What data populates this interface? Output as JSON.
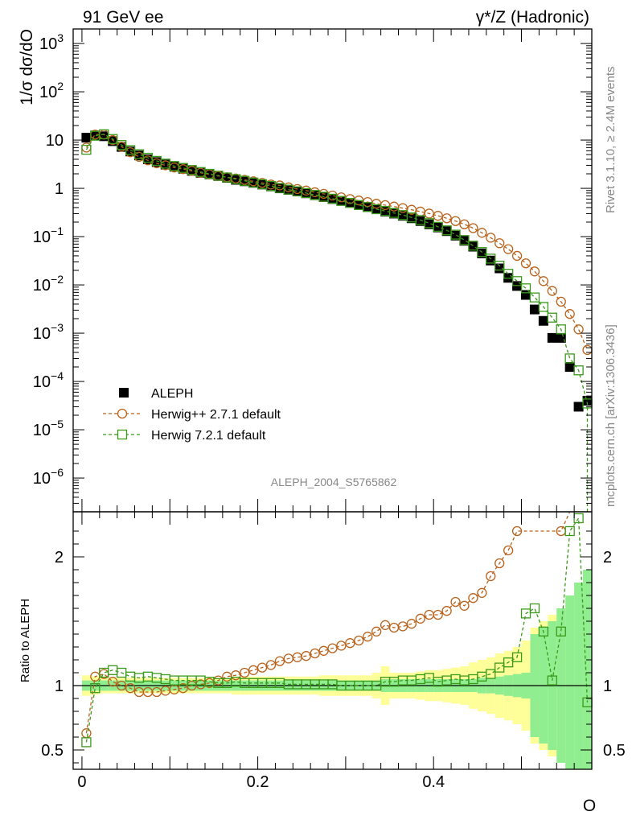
{
  "header": {
    "left_label": "91 GeV ee",
    "right_label": "γ*/Z (Hadronic)"
  },
  "side_labels": {
    "rivet": "Rivet 3.1.10, ≥ 2.4M events",
    "mcplots": "mcplots.cern.ch [arXiv:1306.3436]"
  },
  "analysis_id": "ALEPH_2004_S5765862",
  "chart_data": [
    {
      "type": "scatter",
      "panel": "main",
      "ylabel": "1/σ  dσ/dO",
      "xlabel": "",
      "xlim": [
        -0.01,
        0.58
      ],
      "ylim": [
        2e-07,
        2000
      ],
      "yscale": "log",
      "yticks": [
        {
          "value": 1e-06,
          "label": "10^-6"
        },
        {
          "value": 1e-05,
          "label": "10^-5"
        },
        {
          "value": 0.0001,
          "label": "10^-4"
        },
        {
          "value": 0.001,
          "label": "10^-3"
        },
        {
          "value": 0.01,
          "label": "10^-2"
        },
        {
          "value": 0.1,
          "label": "10^-1"
        },
        {
          "value": 1,
          "label": "1"
        },
        {
          "value": 10,
          "label": "10"
        },
        {
          "value": 100,
          "label": "10^2"
        },
        {
          "value": 1000,
          "label": "10^3"
        }
      ],
      "legend_position": "bottom-left",
      "series": [
        {
          "name": "ALEPH",
          "marker": "filled-square",
          "color": "#000000",
          "x": [
            0.005,
            0.015,
            0.025,
            0.035,
            0.045,
            0.055,
            0.065,
            0.075,
            0.085,
            0.095,
            0.105,
            0.115,
            0.125,
            0.135,
            0.145,
            0.155,
            0.165,
            0.175,
            0.185,
            0.195,
            0.205,
            0.215,
            0.225,
            0.235,
            0.245,
            0.255,
            0.265,
            0.275,
            0.285,
            0.295,
            0.305,
            0.315,
            0.325,
            0.335,
            0.345,
            0.355,
            0.365,
            0.375,
            0.385,
            0.395,
            0.405,
            0.415,
            0.425,
            0.435,
            0.445,
            0.455,
            0.465,
            0.475,
            0.485,
            0.495,
            0.505,
            0.515,
            0.525,
            0.535,
            0.545,
            0.555,
            0.565,
            0.575
          ],
          "y": [
            11.2,
            12.5,
            12.0,
            9.5,
            7.2,
            5.8,
            4.8,
            4.0,
            3.5,
            3.1,
            2.8,
            2.55,
            2.3,
            2.1,
            1.95,
            1.8,
            1.65,
            1.5,
            1.4,
            1.3,
            1.2,
            1.1,
            1.0,
            0.93,
            0.86,
            0.79,
            0.72,
            0.66,
            0.6,
            0.55,
            0.5,
            0.45,
            0.41,
            0.37,
            0.33,
            0.3,
            0.27,
            0.24,
            0.21,
            0.18,
            0.155,
            0.13,
            0.105,
            0.082,
            0.062,
            0.045,
            0.032,
            0.022,
            0.014,
            0.0095,
            0.0062,
            0.0031,
            0.0018,
            0.0008,
            0.0008,
            0.0002,
            3e-05,
            4e-05
          ]
        },
        {
          "name": "Herwig++ 2.7.1 default",
          "marker": "open-circle",
          "color": "#b8621b",
          "x": [
            0.005,
            0.015,
            0.025,
            0.035,
            0.045,
            0.055,
            0.065,
            0.075,
            0.085,
            0.095,
            0.105,
            0.115,
            0.125,
            0.135,
            0.145,
            0.155,
            0.165,
            0.175,
            0.185,
            0.195,
            0.205,
            0.215,
            0.225,
            0.235,
            0.245,
            0.255,
            0.265,
            0.275,
            0.285,
            0.295,
            0.305,
            0.315,
            0.325,
            0.335,
            0.345,
            0.355,
            0.365,
            0.375,
            0.385,
            0.395,
            0.405,
            0.415,
            0.425,
            0.435,
            0.445,
            0.455,
            0.465,
            0.475,
            0.485,
            0.495,
            0.505,
            0.515,
            0.525,
            0.535,
            0.545,
            0.555,
            0.565,
            0.575
          ],
          "y": [
            7.0,
            13.0,
            13.0,
            10.0,
            7.3,
            5.6,
            4.5,
            3.8,
            3.3,
            3.0,
            2.7,
            2.5,
            2.3,
            2.1,
            1.95,
            1.8,
            1.7,
            1.6,
            1.5,
            1.4,
            1.3,
            1.2,
            1.15,
            1.05,
            0.97,
            0.9,
            0.83,
            0.77,
            0.71,
            0.65,
            0.6,
            0.56,
            0.52,
            0.48,
            0.45,
            0.42,
            0.39,
            0.36,
            0.33,
            0.3,
            0.27,
            0.24,
            0.21,
            0.18,
            0.15,
            0.12,
            0.095,
            0.073,
            0.055,
            0.04,
            0.028,
            0.019,
            0.012,
            0.0075,
            0.0045,
            0.0025,
            0.0012,
            0.00045
          ]
        },
        {
          "name": "Herwig 7.2.1 default",
          "marker": "open-square",
          "color": "#3a9a1a",
          "x": [
            0.005,
            0.015,
            0.025,
            0.035,
            0.045,
            0.055,
            0.065,
            0.075,
            0.085,
            0.095,
            0.105,
            0.115,
            0.125,
            0.135,
            0.145,
            0.155,
            0.165,
            0.175,
            0.185,
            0.195,
            0.205,
            0.215,
            0.225,
            0.235,
            0.245,
            0.255,
            0.265,
            0.275,
            0.285,
            0.295,
            0.305,
            0.315,
            0.325,
            0.335,
            0.345,
            0.355,
            0.365,
            0.375,
            0.385,
            0.395,
            0.405,
            0.415,
            0.425,
            0.435,
            0.445,
            0.455,
            0.465,
            0.475,
            0.485,
            0.495,
            0.505,
            0.515,
            0.525,
            0.535,
            0.545,
            0.555,
            0.565,
            0.575
          ],
          "y": [
            6.3,
            12.3,
            13.2,
            10.5,
            7.9,
            6.2,
            5.1,
            4.3,
            3.7,
            3.25,
            2.9,
            2.65,
            2.4,
            2.18,
            2.0,
            1.83,
            1.68,
            1.55,
            1.43,
            1.32,
            1.22,
            1.12,
            1.02,
            0.94,
            0.87,
            0.8,
            0.73,
            0.67,
            0.61,
            0.55,
            0.5,
            0.45,
            0.41,
            0.37,
            0.34,
            0.31,
            0.28,
            0.25,
            0.22,
            0.19,
            0.16,
            0.135,
            0.11,
            0.085,
            0.065,
            0.048,
            0.035,
            0.025,
            0.017,
            0.012,
            0.0085,
            0.0055,
            0.0035,
            0.0021,
            0.0012,
            0.0003,
            0.00017,
            3.5e-05
          ]
        }
      ]
    },
    {
      "type": "scatter",
      "panel": "ratio",
      "ylabel": "Ratio to ALEPH",
      "xlabel": "O",
      "xlim": [
        -0.01,
        0.58
      ],
      "ylim": [
        0.35,
        2.35
      ],
      "xticks": [
        {
          "value": 0,
          "label": "0"
        },
        {
          "value": 0.2,
          "label": "0.2"
        },
        {
          "value": 0.4,
          "label": "0.4"
        }
      ],
      "yticks": [
        {
          "value": 0.5,
          "label": "0.5"
        },
        {
          "value": 1,
          "label": "1"
        },
        {
          "value": 2,
          "label": "2"
        }
      ],
      "reference_line": 1,
      "bands": {
        "stat_color": "#90ee90",
        "total_color": "#ffff99",
        "x": [
          0.005,
          0.015,
          0.025,
          0.035,
          0.045,
          0.055,
          0.065,
          0.075,
          0.085,
          0.095,
          0.105,
          0.115,
          0.125,
          0.135,
          0.145,
          0.155,
          0.165,
          0.175,
          0.185,
          0.195,
          0.205,
          0.215,
          0.225,
          0.235,
          0.245,
          0.255,
          0.265,
          0.275,
          0.285,
          0.295,
          0.305,
          0.315,
          0.325,
          0.335,
          0.345,
          0.355,
          0.365,
          0.375,
          0.385,
          0.395,
          0.405,
          0.415,
          0.425,
          0.435,
          0.445,
          0.455,
          0.465,
          0.475,
          0.485,
          0.495,
          0.505,
          0.515,
          0.525,
          0.535,
          0.545,
          0.555,
          0.565,
          0.575
        ],
        "stat_halfwidth": [
          0.04,
          0.04,
          0.04,
          0.04,
          0.04,
          0.04,
          0.04,
          0.04,
          0.04,
          0.04,
          0.04,
          0.04,
          0.04,
          0.04,
          0.04,
          0.04,
          0.04,
          0.04,
          0.04,
          0.04,
          0.04,
          0.04,
          0.04,
          0.04,
          0.04,
          0.04,
          0.04,
          0.04,
          0.04,
          0.04,
          0.04,
          0.04,
          0.04,
          0.04,
          0.05,
          0.05,
          0.05,
          0.05,
          0.05,
          0.05,
          0.05,
          0.05,
          0.05,
          0.05,
          0.05,
          0.06,
          0.06,
          0.07,
          0.08,
          0.09,
          0.1,
          0.4,
          0.45,
          0.5,
          0.6,
          0.7,
          0.8,
          0.9
        ],
        "total_halfwidth": [
          0.08,
          0.07,
          0.06,
          0.06,
          0.06,
          0.06,
          0.06,
          0.06,
          0.06,
          0.06,
          0.06,
          0.06,
          0.06,
          0.06,
          0.06,
          0.06,
          0.06,
          0.07,
          0.07,
          0.07,
          0.07,
          0.07,
          0.07,
          0.07,
          0.07,
          0.07,
          0.07,
          0.08,
          0.08,
          0.08,
          0.08,
          0.08,
          0.08,
          0.1,
          0.15,
          0.1,
          0.1,
          0.1,
          0.11,
          0.12,
          0.12,
          0.13,
          0.14,
          0.15,
          0.18,
          0.2,
          0.22,
          0.25,
          0.27,
          0.3,
          0.35,
          0.45,
          0.5,
          0.55,
          0.6,
          0.7,
          0.8,
          0.9
        ]
      },
      "series": [
        {
          "name": "Herwig++ 2.7.1 default",
          "marker": "open-circle",
          "color": "#b8621b",
          "x": [
            0.005,
            0.015,
            0.025,
            0.035,
            0.045,
            0.055,
            0.065,
            0.075,
            0.085,
            0.095,
            0.105,
            0.115,
            0.125,
            0.135,
            0.145,
            0.155,
            0.165,
            0.175,
            0.185,
            0.195,
            0.205,
            0.215,
            0.225,
            0.235,
            0.245,
            0.255,
            0.265,
            0.275,
            0.285,
            0.295,
            0.305,
            0.315,
            0.325,
            0.335,
            0.345,
            0.355,
            0.365,
            0.375,
            0.385,
            0.395,
            0.405,
            0.415,
            0.425,
            0.435,
            0.445,
            0.455,
            0.465,
            0.475,
            0.485,
            0.495,
            0.545,
            0.555
          ],
          "y": [
            0.63,
            1.07,
            1.09,
            1.03,
            1.0,
            0.98,
            0.95,
            0.95,
            0.95,
            0.96,
            0.97,
            0.98,
            1.0,
            1.01,
            1.02,
            1.04,
            1.07,
            1.08,
            1.1,
            1.12,
            1.14,
            1.16,
            1.19,
            1.21,
            1.22,
            1.23,
            1.25,
            1.27,
            1.29,
            1.31,
            1.33,
            1.35,
            1.38,
            1.42,
            1.47,
            1.45,
            1.46,
            1.48,
            1.52,
            1.55,
            1.55,
            1.58,
            1.65,
            1.62,
            1.68,
            1.72,
            1.85,
            1.95,
            2.05,
            2.2,
            2.2,
            2.4
          ]
        },
        {
          "name": "Herwig 7.2.1 default",
          "marker": "open-square",
          "color": "#3a9a1a",
          "x": [
            0.005,
            0.015,
            0.025,
            0.035,
            0.045,
            0.055,
            0.065,
            0.075,
            0.085,
            0.095,
            0.105,
            0.115,
            0.125,
            0.135,
            0.145,
            0.155,
            0.165,
            0.175,
            0.185,
            0.195,
            0.205,
            0.215,
            0.225,
            0.235,
            0.245,
            0.255,
            0.265,
            0.275,
            0.285,
            0.295,
            0.305,
            0.315,
            0.325,
            0.335,
            0.345,
            0.355,
            0.365,
            0.375,
            0.385,
            0.395,
            0.405,
            0.415,
            0.425,
            0.435,
            0.445,
            0.455,
            0.465,
            0.475,
            0.485,
            0.495,
            0.505,
            0.515,
            0.525,
            0.535,
            0.545,
            0.555,
            0.565,
            0.575
          ],
          "y": [
            0.56,
            0.98,
            1.1,
            1.12,
            1.1,
            1.07,
            1.06,
            1.07,
            1.06,
            1.05,
            1.04,
            1.04,
            1.04,
            1.04,
            1.03,
            1.02,
            1.02,
            1.03,
            1.02,
            1.02,
            1.02,
            1.02,
            1.02,
            1.01,
            1.01,
            1.01,
            1.01,
            1.01,
            1.01,
            1.0,
            1.0,
            1.0,
            1.0,
            1.0,
            1.03,
            1.03,
            1.04,
            1.04,
            1.05,
            1.06,
            1.03,
            1.04,
            1.05,
            1.04,
            1.05,
            1.07,
            1.09,
            1.14,
            1.18,
            1.22,
            1.56,
            1.6,
            1.42,
            1.04,
            1.42,
            2.2,
            2.3,
            0.87
          ]
        }
      ]
    }
  ]
}
